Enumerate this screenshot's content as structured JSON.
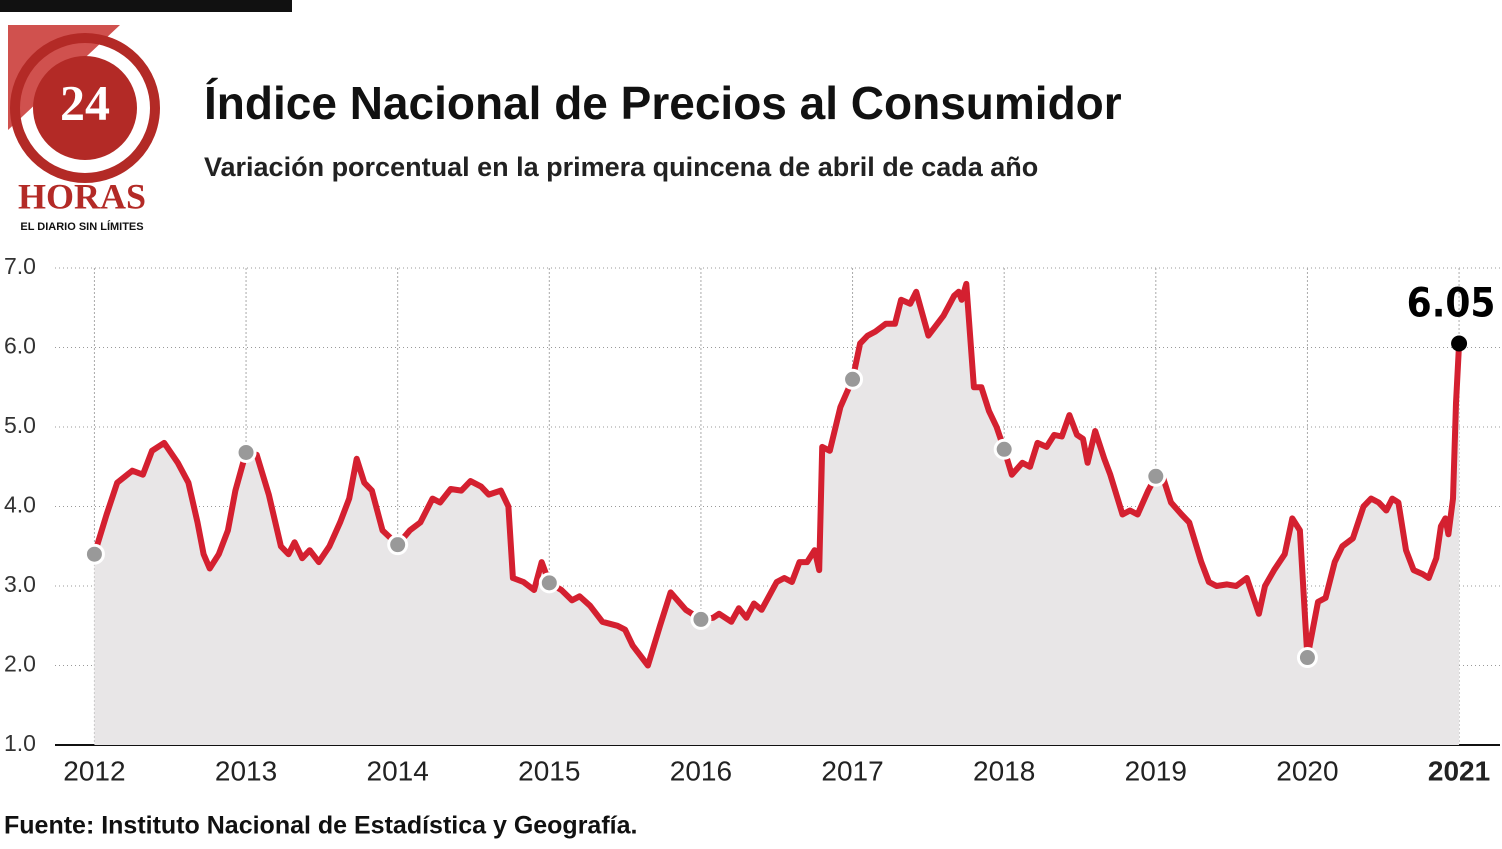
{
  "logo": {
    "number": "24",
    "name": "HORAS",
    "tagline": "EL DIARIO SIN LÍMITES"
  },
  "chart_data": {
    "type": "line",
    "title": "Índice Nacional de Precios al Consumidor",
    "subtitle": "Variación porcentual en la primera quincena de abril de cada año",
    "source": "Fuente: Instituto Nacional de Estadística y Geografía.",
    "x": [
      2012.0,
      2012.08,
      2012.15,
      2012.25,
      2012.32,
      2012.38,
      2012.46,
      2012.55,
      2012.62,
      2012.68,
      2012.72,
      2012.76,
      2012.82,
      2012.88,
      2012.93,
      2013.0,
      2013.07,
      2013.15,
      2013.23,
      2013.28,
      2013.32,
      2013.37,
      2013.42,
      2013.48,
      2013.55,
      2013.62,
      2013.68,
      2013.73,
      2013.78,
      2013.83,
      2013.9,
      2014.0,
      2014.08,
      2014.15,
      2014.23,
      2014.28,
      2014.35,
      2014.42,
      2014.48,
      2014.55,
      2014.6,
      2014.68,
      2014.73,
      2014.76,
      2014.83,
      2014.9,
      2014.95,
      2015.0,
      2015.08,
      2015.15,
      2015.2,
      2015.27,
      2015.35,
      2015.45,
      2015.5,
      2015.55,
      2015.65,
      2015.73,
      2015.8,
      2015.9,
      2016.0,
      2016.08,
      2016.12,
      2016.2,
      2016.25,
      2016.3,
      2016.35,
      2016.4,
      2016.5,
      2016.55,
      2016.6,
      2016.65,
      2016.7,
      2016.75,
      2016.78,
      2016.8,
      2016.85,
      2016.92,
      2017.0,
      2017.05,
      2017.1,
      2017.15,
      2017.22,
      2017.28,
      2017.32,
      2017.38,
      2017.42,
      2017.5,
      2017.6,
      2017.67,
      2017.7,
      2017.72,
      2017.75,
      2017.8,
      2017.85,
      2017.9,
      2017.95,
      2018.0,
      2018.05,
      2018.12,
      2018.17,
      2018.22,
      2018.28,
      2018.33,
      2018.38,
      2018.43,
      2018.48,
      2018.52,
      2018.55,
      2018.6,
      2018.66,
      2018.7,
      2018.78,
      2018.83,
      2018.88,
      2018.95,
      2019.0,
      2019.05,
      2019.1,
      2019.17,
      2019.22,
      2019.3,
      2019.35,
      2019.4,
      2019.47,
      2019.53,
      2019.6,
      2019.68,
      2019.72,
      2019.78,
      2019.85,
      2019.9,
      2019.95,
      2020.0,
      2020.07,
      2020.12,
      2020.18,
      2020.23,
      2020.3,
      2020.37,
      2020.42,
      2020.47,
      2020.52,
      2020.56,
      2020.6,
      2020.65,
      2020.7,
      2020.76,
      2020.8,
      2020.85,
      2020.88,
      2020.91,
      2020.93,
      2020.96,
      2020.98,
      2021.0
    ],
    "series": [
      {
        "color": "#d42030",
        "values": [
          3.4,
          3.9,
          4.3,
          4.45,
          4.4,
          4.7,
          4.8,
          4.55,
          4.3,
          3.8,
          3.4,
          3.22,
          3.4,
          3.7,
          4.2,
          4.68,
          4.65,
          4.15,
          3.5,
          3.4,
          3.55,
          3.35,
          3.45,
          3.3,
          3.5,
          3.8,
          4.1,
          4.6,
          4.3,
          4.2,
          3.7,
          3.52,
          3.7,
          3.8,
          4.1,
          4.05,
          4.22,
          4.2,
          4.32,
          4.25,
          4.15,
          4.2,
          4.0,
          3.1,
          3.05,
          2.95,
          3.3,
          3.04,
          2.95,
          2.82,
          2.87,
          2.75,
          2.55,
          2.5,
          2.45,
          2.25,
          2.0,
          2.5,
          2.92,
          2.7,
          2.58,
          2.6,
          2.65,
          2.55,
          2.72,
          2.6,
          2.78,
          2.7,
          3.05,
          3.1,
          3.05,
          3.3,
          3.3,
          3.45,
          3.2,
          4.75,
          4.7,
          5.25,
          5.6,
          6.05,
          6.15,
          6.2,
          6.3,
          6.3,
          6.6,
          6.55,
          6.7,
          6.15,
          6.4,
          6.65,
          6.7,
          6.6,
          6.8,
          5.5,
          5.5,
          5.2,
          5.0,
          4.72,
          4.4,
          4.55,
          4.5,
          4.8,
          4.75,
          4.9,
          4.88,
          5.15,
          4.9,
          4.85,
          4.55,
          4.95,
          4.6,
          4.4,
          3.9,
          3.95,
          3.9,
          4.2,
          4.38,
          4.35,
          4.05,
          3.9,
          3.8,
          3.3,
          3.05,
          3.0,
          3.02,
          3.0,
          3.1,
          2.65,
          3.0,
          3.2,
          3.4,
          3.85,
          3.7,
          2.1,
          2.8,
          2.85,
          3.3,
          3.5,
          3.6,
          4.0,
          4.1,
          4.05,
          3.95,
          4.1,
          4.05,
          3.45,
          3.2,
          3.15,
          3.1,
          3.35,
          3.75,
          3.85,
          3.65,
          4.1,
          5.3,
          6.05
        ]
      }
    ],
    "xlim": [
      2011.74,
      2021.27
    ],
    "xticks": [
      2012,
      2013,
      2014,
      2015,
      2016,
      2017,
      2018,
      2019,
      2020,
      2021
    ],
    "ylim": [
      1,
      7
    ],
    "yticks": [
      {
        "value": 1,
        "label": "1.0"
      },
      {
        "value": 2,
        "label": "2.0"
      },
      {
        "value": 3,
        "label": "3.0"
      },
      {
        "value": 4,
        "label": "4.0"
      },
      {
        "value": 5,
        "label": "5.0"
      },
      {
        "value": 6,
        "label": "6.0"
      },
      {
        "value": 7,
        "label": "7.0"
      }
    ],
    "grid": true
  }
}
